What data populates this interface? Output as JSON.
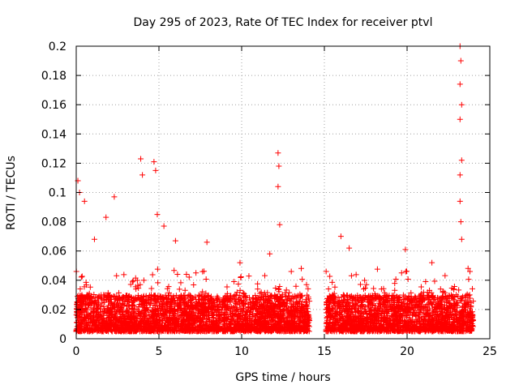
{
  "chart_data": {
    "type": "scatter",
    "title": "Day 295 of 2023, Rate Of TEC Index for receiver ptvl",
    "xlabel": "GPS time / hours",
    "ylabel": "ROTI / TECUs",
    "xlim": [
      0,
      25
    ],
    "ylim": [
      0,
      0.2
    ],
    "xticks": [
      "0",
      "5",
      "10",
      "15",
      "20",
      "25"
    ],
    "yticks": [
      "0",
      "0.02",
      "0.04",
      "0.06",
      "0.08",
      "0.1",
      "0.12",
      "0.14",
      "0.16",
      "0.18",
      "0.2"
    ],
    "grid": true,
    "marker": "+",
    "color": "#ff0000",
    "series": [
      {
        "name": "ROTI",
        "data_gap_hours": [
          14.1,
          15.1
        ],
        "time_ranges_hours": [
          [
            0.0,
            14.1
          ],
          [
            15.1,
            24.0
          ]
        ],
        "typical_range": [
          0.005,
          0.03
        ],
        "spikes": [
          {
            "x": 0.1,
            "y": 0.108
          },
          {
            "x": 0.2,
            "y": 0.1
          },
          {
            "x": 0.5,
            "y": 0.094
          },
          {
            "x": 1.1,
            "y": 0.068
          },
          {
            "x": 1.8,
            "y": 0.083
          },
          {
            "x": 2.3,
            "y": 0.097
          },
          {
            "x": 3.9,
            "y": 0.123
          },
          {
            "x": 4.0,
            "y": 0.112
          },
          {
            "x": 4.7,
            "y": 0.121
          },
          {
            "x": 4.8,
            "y": 0.115
          },
          {
            "x": 4.9,
            "y": 0.085
          },
          {
            "x": 5.3,
            "y": 0.077
          },
          {
            "x": 6.0,
            "y": 0.067
          },
          {
            "x": 7.9,
            "y": 0.066
          },
          {
            "x": 9.9,
            "y": 0.052
          },
          {
            "x": 11.7,
            "y": 0.058
          },
          {
            "x": 12.2,
            "y": 0.127
          },
          {
            "x": 12.25,
            "y": 0.118
          },
          {
            "x": 12.2,
            "y": 0.104
          },
          {
            "x": 12.3,
            "y": 0.078
          },
          {
            "x": 13.0,
            "y": 0.046
          },
          {
            "x": 16.0,
            "y": 0.07
          },
          {
            "x": 16.5,
            "y": 0.062
          },
          {
            "x": 19.9,
            "y": 0.061
          },
          {
            "x": 21.5,
            "y": 0.052
          },
          {
            "x": 23.2,
            "y": 0.2
          },
          {
            "x": 23.25,
            "y": 0.19
          },
          {
            "x": 23.2,
            "y": 0.174
          },
          {
            "x": 23.3,
            "y": 0.16
          },
          {
            "x": 23.2,
            "y": 0.15
          },
          {
            "x": 23.3,
            "y": 0.122
          },
          {
            "x": 23.2,
            "y": 0.112
          },
          {
            "x": 23.2,
            "y": 0.094
          },
          {
            "x": 23.25,
            "y": 0.08
          },
          {
            "x": 23.3,
            "y": 0.068
          },
          {
            "x": 23.8,
            "y": 0.046
          }
        ]
      }
    ]
  }
}
